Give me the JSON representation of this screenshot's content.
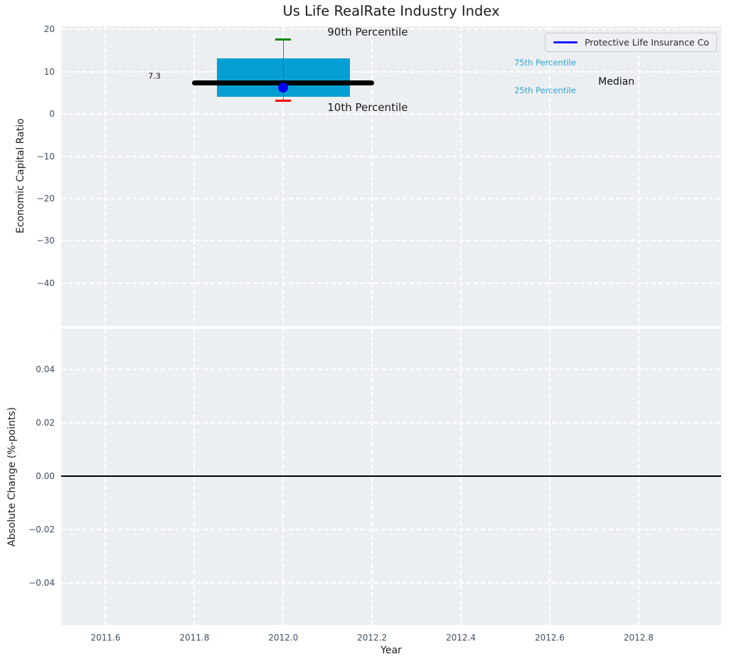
{
  "title": "Us Life RealRate Industry Index",
  "colors": {
    "plot_bg": "#eceff1",
    "grid": "#ffffff",
    "box_fill": "#069fd4",
    "median_line": "#000000",
    "whisker": "#606060",
    "cap_90th": "#138413",
    "cap_10th": "#f40000",
    "company_dot": "#0000ee",
    "legend_line": "#1a1aff",
    "annotation_cyan": "#2aa5d8",
    "tick_label": "#3f4d63",
    "text": "#1c1c1c"
  },
  "chart_data": [
    {
      "type": "boxplot",
      "title": "Us Life RealRate Industry Index",
      "ylabel": "Economic Capital Ratio",
      "xlim": [
        2011.5,
        2012.986
      ],
      "ylim": [
        -50.1,
        20.7
      ],
      "grid": true,
      "yticks": [
        20,
        10,
        0,
        -10,
        -20,
        -30,
        -40
      ],
      "yticklabels": [
        "20",
        "10",
        "0",
        "−10",
        "−20",
        "−30",
        "−40"
      ],
      "xticks": [
        2011.6,
        2011.8,
        2012.0,
        2012.2,
        2012.4,
        2012.6,
        2012.8
      ],
      "xticklabels": [
        "2011.6",
        "2011.8",
        "2012.0",
        "2012.2",
        "2012.4",
        "2012.6",
        "2012.8"
      ],
      "box": {
        "x": 2012.0,
        "median": 7.3,
        "q1": 4.1,
        "q3": 13.2,
        "p10": 3.2,
        "p90": 17.6,
        "company_value": 6.2,
        "box_half_width": 0.15,
        "median_half_width": 0.205,
        "cap_half_width": 0.018
      },
      "legend": {
        "label": "Protective Life Insurance Co",
        "line_color": "#1a1aff",
        "position": "upper right"
      },
      "annotations": [
        {
          "text": "90th Percentile",
          "x": 2012.19,
          "y": 19.4,
          "color": "#1c1c1c",
          "size": 15,
          "anchor": "middle"
        },
        {
          "text": "10th Percentile",
          "x": 2012.19,
          "y": 1.6,
          "color": "#1c1c1c",
          "size": 15,
          "anchor": "middle"
        },
        {
          "text": "75th Percentile",
          "x": 2012.52,
          "y": 12.1,
          "color": "#2aa5d8",
          "size": 11.5,
          "anchor": "start"
        },
        {
          "text": "25th Percentile",
          "x": 2012.52,
          "y": 5.5,
          "color": "#2aa5d8",
          "size": 11.5,
          "anchor": "start"
        },
        {
          "text": "Median",
          "x": 2012.75,
          "y": 7.5,
          "color": "#111111",
          "size": 14,
          "anchor": "middle"
        },
        {
          "text": "7.3",
          "x": 2011.71,
          "y": 9.0,
          "color": "#111111",
          "size": 11,
          "anchor": "middle"
        }
      ]
    },
    {
      "type": "line",
      "ylabel": "Absolute Change (%-points)",
      "xlabel": "Year",
      "xlim": [
        2011.5,
        2012.986
      ],
      "ylim": [
        -0.0557,
        0.0552
      ],
      "grid": true,
      "yticks": [
        0.04,
        0.02,
        0.0,
        -0.02,
        -0.04
      ],
      "yticklabels": [
        "0.04",
        "0.02",
        "0.00",
        "−0.02",
        "−0.04"
      ],
      "xticks": [
        2011.6,
        2011.8,
        2012.0,
        2012.2,
        2012.4,
        2012.6,
        2012.8
      ],
      "xticklabels": [
        "2011.6",
        "2011.8",
        "2012.0",
        "2012.2",
        "2012.4",
        "2012.6",
        "2012.8"
      ],
      "zero_line": 0.0
    }
  ]
}
